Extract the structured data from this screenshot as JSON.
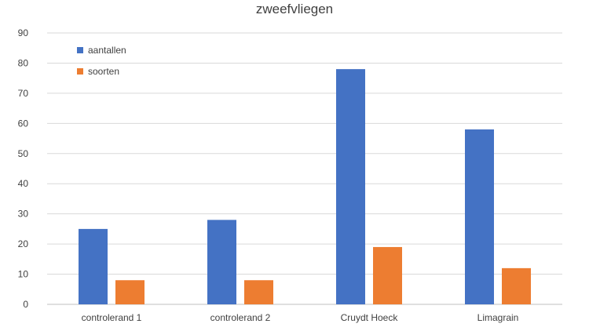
{
  "chart_data": {
    "type": "bar",
    "title": "zweefvliegen",
    "xlabel": "",
    "ylabel": "",
    "categories": [
      "controlerand 1",
      "controlerand 2",
      "Cruydt Hoeck",
      "Limagrain"
    ],
    "series": [
      {
        "name": "aantallen",
        "color": "#4472C4",
        "values": [
          25,
          28,
          78,
          58
        ]
      },
      {
        "name": "soorten",
        "color": "#ED7D31",
        "values": [
          8,
          8,
          19,
          12
        ]
      }
    ],
    "ylim": [
      0,
      90
    ],
    "yticks": [
      0,
      10,
      20,
      30,
      40,
      50,
      60,
      70,
      80,
      90
    ],
    "grid": true,
    "legend_position": "top-left"
  }
}
